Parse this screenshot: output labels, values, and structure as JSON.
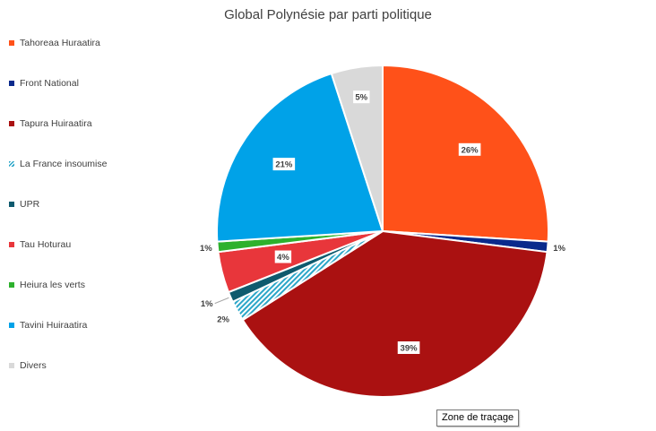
{
  "chart_data": {
    "type": "pie",
    "title": "Global Polynésie par parti politique",
    "legend_position": "left",
    "slices": [
      {
        "name": "Tahoreaa Huraatira",
        "value": 26,
        "label": "26%",
        "color": "#FF5119",
        "pattern": "solid"
      },
      {
        "name": "Front National",
        "value": 1,
        "label": "1%",
        "color": "#0A2A8C",
        "pattern": "solid"
      },
      {
        "name": "Tapura Huiraatira",
        "value": 39,
        "label": "39%",
        "color": "#AA1111",
        "pattern": "solid"
      },
      {
        "name": "La France insoumise",
        "value": 2,
        "label": "2%",
        "color": "#2BA6C8",
        "pattern": "hatch"
      },
      {
        "name": "UPR",
        "value": 1,
        "label": "1%",
        "color": "#0E5A6E",
        "pattern": "solid"
      },
      {
        "name": "Tau Hoturau",
        "value": 4,
        "label": "4%",
        "color": "#E8363B",
        "pattern": "solid"
      },
      {
        "name": "Heiura les verts",
        "value": 1,
        "label": "1%",
        "color": "#2DB12D",
        "pattern": "solid"
      },
      {
        "name": "Tavini Huiraatira",
        "value": 21,
        "label": "21%",
        "color": "#00A2E8",
        "pattern": "solid"
      },
      {
        "name": "Divers",
        "value": 5,
        "label": "5%",
        "color": "#D9D9D9",
        "pattern": "solid"
      }
    ]
  },
  "tooltip": {
    "text": "Zone de traçage"
  }
}
